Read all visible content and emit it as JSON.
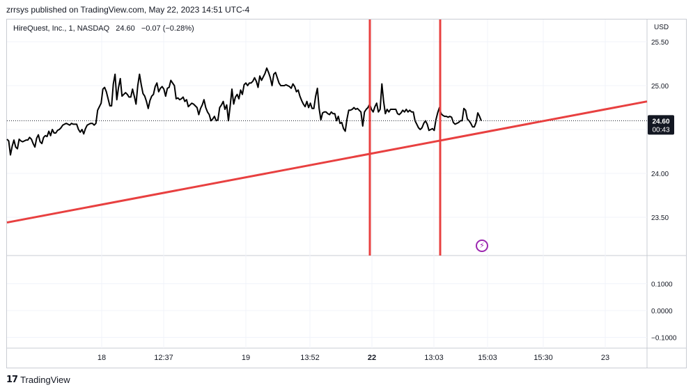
{
  "header": {
    "published_text": "zrrsys published on TradingView.com, May 22, 2023 14:51 UTC-4"
  },
  "legend": {
    "symbol": "HireQuest, Inc., 1, NASDAQ",
    "last": "24.60",
    "change": "−0.07 (−0.28%)"
  },
  "price_axis": {
    "unit": "USD",
    "ticks": [
      "25.50",
      "25.00",
      "24.00",
      "23.50"
    ],
    "current_price": "24.60",
    "countdown": "00:43"
  },
  "indicator_axis": {
    "ticks": [
      "0.1000",
      "0.0000",
      "−0.1000"
    ]
  },
  "time_axis": {
    "ticks": [
      "18",
      "12:37",
      "19",
      "13:52",
      "22",
      "13:03",
      "15:03",
      "15:30",
      "23"
    ],
    "bold_ticks": [
      "22"
    ]
  },
  "footer": {
    "brand": "TradingView",
    "logo_mark": "17"
  },
  "colors": {
    "price_line": "#000000",
    "trend_line": "#e84040",
    "vertical_lines": "#e84040",
    "grid": "#f0f3fa",
    "label_bg": "#131722",
    "flash_icon": "#9c27b0"
  },
  "icons": {
    "flash": "lightning-icon"
  },
  "chart_data": {
    "type": "line",
    "title": "HireQuest, Inc., 1, NASDAQ",
    "ylabel": "USD",
    "ylim": [
      23.0,
      25.5
    ],
    "x_ticks": [
      "18",
      "12:37",
      "19",
      "13:52",
      "22",
      "13:03",
      "15:03",
      "15:30",
      "23"
    ],
    "series": [
      {
        "name": "HireQuest, Inc.",
        "values": [
          24.39,
          24.37,
          24.21,
          24.31,
          24.38,
          24.3,
          24.28,
          24.39,
          24.37,
          24.36,
          24.37,
          24.38,
          24.38,
          24.41,
          24.39,
          24.34,
          24.3,
          24.4,
          24.44,
          24.36,
          24.34,
          24.41,
          24.43,
          24.42,
          24.48,
          24.43,
          24.5,
          24.46,
          24.46,
          24.49,
          24.5,
          24.52,
          24.55,
          24.56,
          24.57,
          24.56,
          24.55,
          24.57,
          24.56,
          24.56,
          24.56,
          24.5,
          24.47,
          24.5,
          24.45,
          24.51,
          24.55,
          24.56,
          24.57,
          24.57,
          24.55,
          24.57,
          24.72,
          24.76,
          24.8,
          24.96,
          24.98,
          24.93,
          24.85,
          24.77,
          24.77,
          25.02,
          25.13,
          24.84,
          24.98,
          25.08,
          24.88,
          24.9,
          24.92,
          24.9,
          24.87,
          24.87,
          24.96,
          24.88,
          24.79,
          25.0,
          25.13,
          25.01,
          24.91,
          24.88,
          24.82,
          24.74,
          24.83,
          24.88,
          24.9,
          24.99,
          25.03,
          24.93,
          24.97,
          24.99,
          24.96,
          24.88,
          24.97,
          24.98,
          25.06,
          25.03,
          25.0,
          24.85,
          24.86,
          24.84,
          24.85,
          24.87,
          24.82,
          24.84,
          24.76,
          24.78,
          24.8,
          24.79,
          24.77,
          24.75,
          24.67,
          24.74,
          24.78,
          24.84,
          24.75,
          24.7,
          24.67,
          24.6,
          24.62,
          24.65,
          24.6,
          24.61,
          24.75,
          24.78,
          24.82,
          24.73,
          24.78,
          24.6,
          24.77,
          24.96,
          24.79,
          24.87,
          24.9,
          24.85,
          24.95,
          24.9,
          25.01,
          25.03,
          25.0,
          25.03,
          25.03,
          25.05,
          25.09,
          25.05,
          24.98,
          25.11,
          25.06,
          25.1,
          25.14,
          25.2,
          25.15,
          25.09,
          25.0,
          25.13,
          25.15,
          25.09,
          25.03,
          25.0,
          25.0,
          25.0,
          25.01,
          25.0,
          24.99,
          24.97,
          25.02,
          24.99,
          24.93,
          24.95,
          24.88,
          24.83,
          24.79,
          24.76,
          24.82,
          24.75,
          24.8,
          24.74,
          24.74,
          24.88,
          24.97,
          24.74,
          24.61,
          24.69,
          24.7,
          24.7,
          24.68,
          24.67,
          24.7,
          24.68,
          24.68,
          24.6,
          24.65,
          24.57,
          24.58,
          24.51,
          24.48,
          24.62,
          24.72,
          24.72,
          24.73,
          24.75,
          24.73,
          24.74,
          24.72,
          24.7,
          24.54,
          24.7,
          24.73,
          24.75,
          24.79,
          24.73,
          24.7,
          24.76,
          24.8,
          24.7,
          24.73,
          25.02,
          24.82,
          24.68,
          24.73,
          24.7,
          24.73,
          24.73,
          24.73,
          24.73,
          24.68,
          24.67,
          24.69,
          24.72,
          24.7,
          24.73,
          24.7,
          24.72,
          24.7,
          24.7,
          24.6,
          24.56,
          24.52,
          24.5,
          24.52,
          24.57,
          24.6,
          24.56,
          24.49,
          24.5,
          24.51,
          24.49,
          24.61,
          24.69,
          24.75,
          24.68,
          24.66,
          24.65,
          24.65,
          24.64,
          24.65,
          24.64,
          24.58,
          24.56,
          24.57,
          24.58,
          24.6,
          24.6,
          24.74,
          24.72,
          24.62,
          24.6,
          24.57,
          24.53,
          24.53,
          24.58,
          24.69,
          24.65,
          24.6
        ]
      }
    ],
    "horizontal_reference": {
      "value": 24.6,
      "style": "dotted"
    },
    "trend_line": {
      "start_value": 23.44,
      "end_value": 24.82
    },
    "indicator_pane": {
      "ylim": [
        -0.15,
        0.15
      ],
      "ticks": [
        0.1,
        0.0,
        -0.1
      ]
    }
  }
}
